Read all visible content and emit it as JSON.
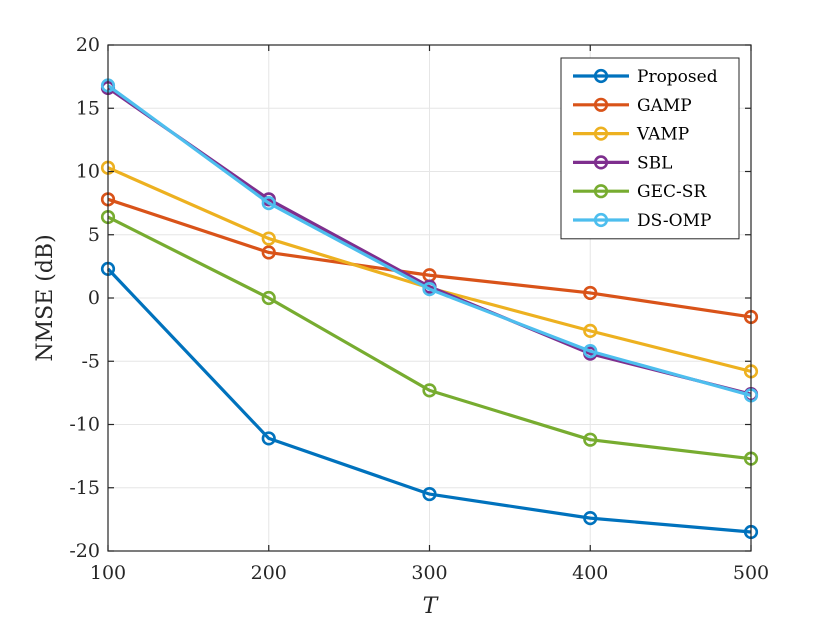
{
  "chart_data": {
    "type": "line",
    "title": "",
    "xlabel": "T",
    "ylabel": "NMSE (dB)",
    "x": [
      100,
      200,
      300,
      400,
      500
    ],
    "xlim": [
      100,
      500
    ],
    "ylim": [
      -20,
      20
    ],
    "xticks": [
      "100",
      "200",
      "300",
      "400",
      "500"
    ],
    "yticks": [
      "-20",
      "-15",
      "-10",
      "-5",
      "0",
      "5",
      "10",
      "15",
      "20"
    ],
    "grid": true,
    "legend_position": "top-right",
    "series": [
      {
        "name": "Proposed",
        "color": "#0072BD",
        "values": [
          2.3,
          -11.1,
          -15.5,
          -17.4,
          -18.5
        ]
      },
      {
        "name": "GAMP",
        "color": "#D95319",
        "values": [
          7.8,
          3.6,
          1.8,
          0.4,
          -1.5
        ]
      },
      {
        "name": "VAMP",
        "color": "#EDB120",
        "values": [
          10.3,
          4.7,
          0.8,
          -2.6,
          -5.8
        ]
      },
      {
        "name": "SBL",
        "color": "#7E2F8E",
        "values": [
          16.6,
          7.8,
          0.9,
          -4.4,
          -7.6
        ]
      },
      {
        "name": "GEC-SR",
        "color": "#77AC30",
        "values": [
          6.4,
          0.0,
          -7.3,
          -11.2,
          -12.7
        ]
      },
      {
        "name": "DS-OMP",
        "color": "#4DBEEE",
        "values": [
          16.8,
          7.5,
          0.7,
          -4.2,
          -7.7
        ]
      }
    ]
  }
}
